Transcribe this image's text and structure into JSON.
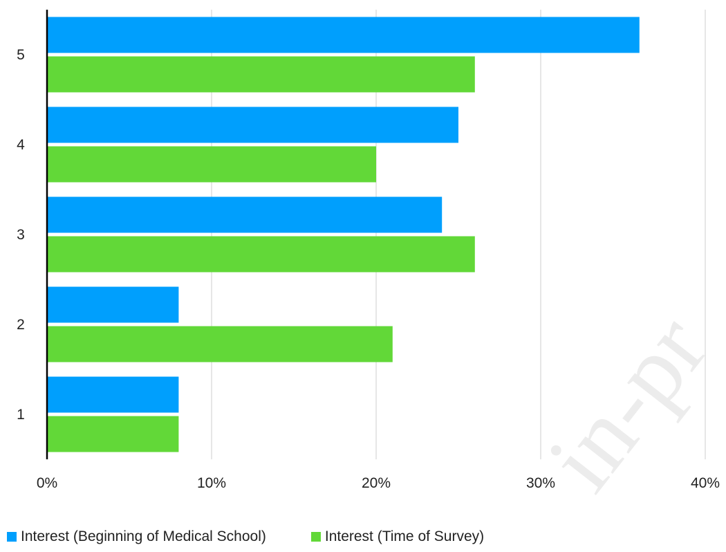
{
  "chart_data": {
    "type": "bar",
    "orientation": "horizontal",
    "categories": [
      "1",
      "2",
      "3",
      "4",
      "5"
    ],
    "series": [
      {
        "name": "Interest (Beginning of Medical School)",
        "color": "#009FFD",
        "values": [
          8,
          8,
          24,
          25,
          36
        ]
      },
      {
        "name": "Interest (Time of Survey)",
        "color": "#62D838",
        "values": [
          8,
          21,
          26,
          20,
          26
        ]
      }
    ],
    "x_ticks": [
      "0%",
      "10%",
      "20%",
      "30%",
      "40%"
    ],
    "xlim": [
      0,
      40
    ],
    "grid": true,
    "legend_position": "bottom",
    "title": "",
    "xlabel": "",
    "ylabel": ""
  },
  "watermark": "in-pr"
}
